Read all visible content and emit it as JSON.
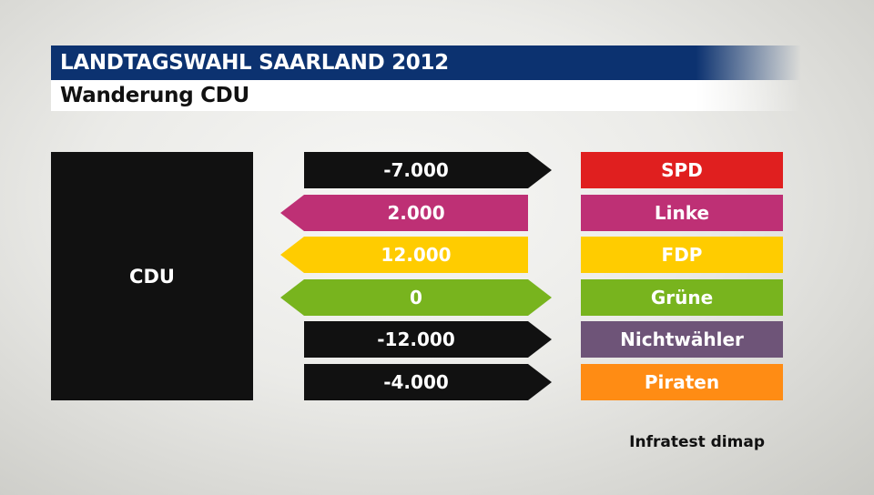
{
  "header": {
    "title": "LANDTAGSWAHL SAARLAND 2012",
    "subtitle": "Wanderung CDU"
  },
  "source_party": "CDU",
  "source_credit": "Infratest dimap",
  "colors": {
    "title_bar": "#0c3270",
    "source_party": "#111111",
    "outflow_arrow": "#111111"
  },
  "flows": [
    {
      "value": "-7.000",
      "party": "SPD",
      "party_color": "#e01f1f",
      "arrow_color": "#111111",
      "direction": "right"
    },
    {
      "value": "2.000",
      "party": "Linke",
      "party_color": "#be3075",
      "arrow_color": "#be3075",
      "direction": "left"
    },
    {
      "value": "12.000",
      "party": "FDP",
      "party_color": "#ffcc00",
      "arrow_color": "#ffcc00",
      "direction": "left"
    },
    {
      "value": "0",
      "party": "Grüne",
      "party_color": "#78b41e",
      "arrow_color": "#78b41e",
      "direction": "both"
    },
    {
      "value": "-12.000",
      "party": "Nichtwähler",
      "party_color": "#6e5478",
      "arrow_color": "#111111",
      "direction": "right"
    },
    {
      "value": "-4.000",
      "party": "Piraten",
      "party_color": "#ff8c14",
      "arrow_color": "#111111",
      "direction": "right"
    }
  ]
}
